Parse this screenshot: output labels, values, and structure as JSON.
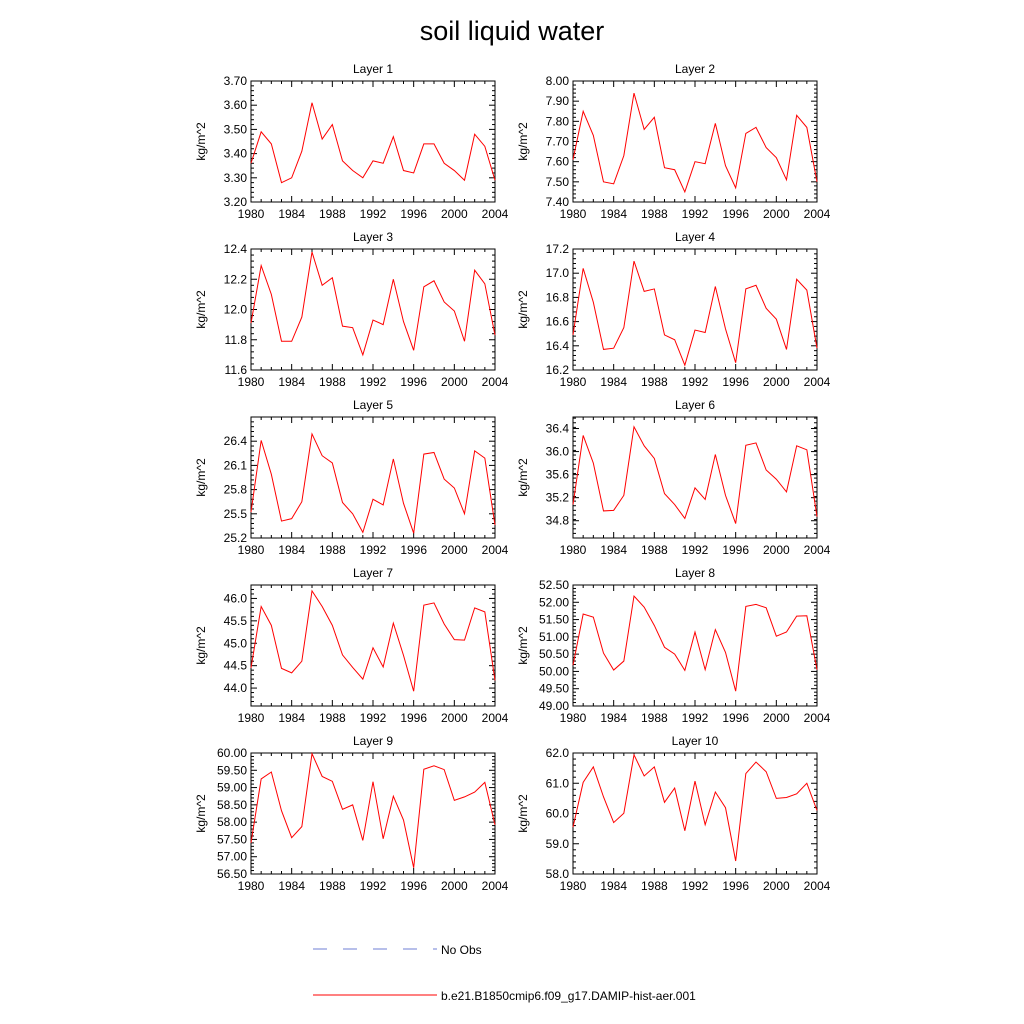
{
  "figure": {
    "title": "soil liquid water"
  },
  "legend": {
    "entries": [
      {
        "label": "No Obs",
        "color": "#6f7fd6",
        "dash": "dashed"
      },
      {
        "label": "b.e21.B1850cmip6.f09_g17.DAMIP-hist-aer.001",
        "color": "#ff0000",
        "dash": "solid"
      }
    ]
  },
  "colors": {
    "series": "#ff0000",
    "obs": "#6f7fd6",
    "axis": "#000000"
  },
  "chart_data": [
    {
      "type": "line",
      "title": "Layer 1",
      "ylabel": "kg/m^2",
      "xlim": [
        1980,
        2004
      ],
      "ylim": [
        3.2,
        3.7
      ],
      "xticks": [
        1980,
        1984,
        1988,
        1992,
        1996,
        2000,
        2004
      ],
      "xtick_labels": [
        "1980",
        "1984",
        "1988",
        "1992",
        "1996",
        "2000",
        "2004"
      ],
      "yticks": [
        3.2,
        3.3,
        3.4,
        3.5,
        3.6,
        3.7
      ],
      "ytick_labels": [
        "3.20",
        "3.30",
        "3.40",
        "3.50",
        "3.60",
        "3.70"
      ],
      "x": [
        1980,
        1981,
        1982,
        1983,
        1984,
        1985,
        1986,
        1987,
        1988,
        1989,
        1990,
        1991,
        1992,
        1993,
        1994,
        1995,
        1996,
        1997,
        1998,
        1999,
        2000,
        2001,
        2002,
        2003,
        2004
      ],
      "series": [
        {
          "name": "b.e21.B1850cmip6.f09_g17.DAMIP-hist-aer.001",
          "values": [
            3.36,
            3.49,
            3.44,
            3.28,
            3.3,
            3.41,
            3.61,
            3.46,
            3.52,
            3.37,
            3.33,
            3.3,
            3.37,
            3.36,
            3.47,
            3.33,
            3.32,
            3.44,
            3.44,
            3.36,
            3.33,
            3.29,
            3.48,
            3.43,
            3.29
          ]
        }
      ]
    },
    {
      "type": "line",
      "title": "Layer 2",
      "ylabel": "kg/m^2",
      "xlim": [
        1980,
        2004
      ],
      "ylim": [
        7.4,
        8.0
      ],
      "xticks": [
        1980,
        1984,
        1988,
        1992,
        1996,
        2000,
        2004
      ],
      "xtick_labels": [
        "1980",
        "1984",
        "1988",
        "1992",
        "1996",
        "2000",
        "2004"
      ],
      "yticks": [
        7.4,
        7.5,
        7.6,
        7.7,
        7.8,
        7.9,
        8.0
      ],
      "ytick_labels": [
        "7.40",
        "7.50",
        "7.60",
        "7.70",
        "7.80",
        "7.90",
        "8.00"
      ],
      "x": [
        1980,
        1981,
        1982,
        1983,
        1984,
        1985,
        1986,
        1987,
        1988,
        1989,
        1990,
        1991,
        1992,
        1993,
        1994,
        1995,
        1996,
        1997,
        1998,
        1999,
        2000,
        2001,
        2002,
        2003,
        2004
      ],
      "series": [
        {
          "name": "b.e21.B1850cmip6.f09_g17.DAMIP-hist-aer.001",
          "values": [
            7.61,
            7.85,
            7.73,
            7.5,
            7.49,
            7.63,
            7.94,
            7.76,
            7.82,
            7.57,
            7.56,
            7.45,
            7.6,
            7.59,
            7.79,
            7.58,
            7.47,
            7.74,
            7.77,
            7.67,
            7.62,
            7.51,
            7.83,
            7.77,
            7.5
          ]
        }
      ]
    },
    {
      "type": "line",
      "title": "Layer 3",
      "ylabel": "kg/m^2",
      "xlim": [
        1980,
        2004
      ],
      "ylim": [
        11.6,
        12.4
      ],
      "xticks": [
        1980,
        1984,
        1988,
        1992,
        1996,
        2000,
        2004
      ],
      "xtick_labels": [
        "1980",
        "1984",
        "1988",
        "1992",
        "1996",
        "2000",
        "2004"
      ],
      "yticks": [
        11.6,
        11.8,
        12.0,
        12.2,
        12.4
      ],
      "ytick_labels": [
        "11.6",
        "11.8",
        "12.0",
        "12.2",
        "12.4"
      ],
      "x": [
        1980,
        1981,
        1982,
        1983,
        1984,
        1985,
        1986,
        1987,
        1988,
        1989,
        1990,
        1991,
        1992,
        1993,
        1994,
        1995,
        1996,
        1997,
        1998,
        1999,
        2000,
        2001,
        2002,
        2003,
        2004
      ],
      "series": [
        {
          "name": "b.e21.B1850cmip6.f09_g17.DAMIP-hist-aer.001",
          "values": [
            11.91,
            12.29,
            12.1,
            11.79,
            11.79,
            11.95,
            12.38,
            12.16,
            12.21,
            11.89,
            11.88,
            11.7,
            11.93,
            11.9,
            12.2,
            11.92,
            11.73,
            12.15,
            12.19,
            12.05,
            11.99,
            11.79,
            12.26,
            12.17,
            11.83
          ]
        }
      ]
    },
    {
      "type": "line",
      "title": "Layer 4",
      "ylabel": "kg/m^2",
      "xlim": [
        1980,
        2004
      ],
      "ylim": [
        16.2,
        17.2
      ],
      "xticks": [
        1980,
        1984,
        1988,
        1992,
        1996,
        2000,
        2004
      ],
      "xtick_labels": [
        "1980",
        "1984",
        "1988",
        "1992",
        "1996",
        "2000",
        "2004"
      ],
      "yticks": [
        16.2,
        16.4,
        16.6,
        16.8,
        17.0,
        17.2
      ],
      "ytick_labels": [
        "16.2",
        "16.4",
        "16.6",
        "16.8",
        "17.0",
        "17.2"
      ],
      "x": [
        1980,
        1981,
        1982,
        1983,
        1984,
        1985,
        1986,
        1987,
        1988,
        1989,
        1990,
        1991,
        1992,
        1993,
        1994,
        1995,
        1996,
        1997,
        1998,
        1999,
        2000,
        2001,
        2002,
        2003,
        2004
      ],
      "series": [
        {
          "name": "b.e21.B1850cmip6.f09_g17.DAMIP-hist-aer.001",
          "values": [
            16.49,
            17.04,
            16.76,
            16.37,
            16.38,
            16.55,
            17.1,
            16.85,
            16.87,
            16.49,
            16.45,
            16.24,
            16.53,
            16.51,
            16.89,
            16.54,
            16.26,
            16.87,
            16.9,
            16.71,
            16.62,
            16.37,
            16.95,
            16.86,
            16.38
          ]
        }
      ]
    },
    {
      "type": "line",
      "title": "Layer 5",
      "ylabel": "kg/m^2",
      "xlim": [
        1980,
        2004
      ],
      "ylim": [
        25.2,
        26.7
      ],
      "xticks": [
        1980,
        1984,
        1988,
        1992,
        1996,
        2000,
        2004
      ],
      "xtick_labels": [
        "1980",
        "1984",
        "1988",
        "1992",
        "1996",
        "2000",
        "2004"
      ],
      "yticks": [
        25.2,
        25.5,
        25.8,
        26.1,
        26.4
      ],
      "ytick_labels": [
        "25.2",
        "25.5",
        "25.8",
        "26.1",
        "26.4"
      ],
      "x": [
        1980,
        1981,
        1982,
        1983,
        1984,
        1985,
        1986,
        1987,
        1988,
        1989,
        1990,
        1991,
        1992,
        1993,
        1994,
        1995,
        1996,
        1997,
        1998,
        1999,
        2000,
        2001,
        2002,
        2003,
        2004
      ],
      "series": [
        {
          "name": "b.e21.B1850cmip6.f09_g17.DAMIP-hist-aer.001",
          "values": [
            25.52,
            26.41,
            25.99,
            25.41,
            25.44,
            25.65,
            26.49,
            26.22,
            26.13,
            25.64,
            25.5,
            25.27,
            25.68,
            25.61,
            26.18,
            25.63,
            25.26,
            26.24,
            26.26,
            25.93,
            25.82,
            25.5,
            26.28,
            26.19,
            25.36
          ]
        }
      ]
    },
    {
      "type": "line",
      "title": "Layer 6",
      "ylabel": "kg/m^2",
      "xlim": [
        1980,
        2004
      ],
      "ylim": [
        34.5,
        36.6
      ],
      "xticks": [
        1980,
        1984,
        1988,
        1992,
        1996,
        2000,
        2004
      ],
      "xtick_labels": [
        "1980",
        "1984",
        "1988",
        "1992",
        "1996",
        "2000",
        "2004"
      ],
      "yticks": [
        34.8,
        35.2,
        35.6,
        36.0,
        36.4
      ],
      "ytick_labels": [
        "34.8",
        "35.2",
        "35.6",
        "36.0",
        "36.4"
      ],
      "x": [
        1980,
        1981,
        1982,
        1983,
        1984,
        1985,
        1986,
        1987,
        1988,
        1989,
        1990,
        1991,
        1992,
        1993,
        1994,
        1995,
        1996,
        1997,
        1998,
        1999,
        2000,
        2001,
        2002,
        2003,
        2004
      ],
      "series": [
        {
          "name": "b.e21.B1850cmip6.f09_g17.DAMIP-hist-aer.001",
          "values": [
            35.08,
            36.28,
            35.8,
            34.97,
            34.98,
            35.24,
            36.43,
            36.1,
            35.88,
            35.27,
            35.08,
            34.84,
            35.37,
            35.17,
            35.95,
            35.24,
            34.75,
            36.11,
            36.15,
            35.68,
            35.52,
            35.3,
            36.1,
            36.03,
            34.87
          ]
        }
      ]
    },
    {
      "type": "line",
      "title": "Layer 7",
      "ylabel": "kg/m^2",
      "xlim": [
        1980,
        2004
      ],
      "ylim": [
        43.6,
        46.3
      ],
      "xticks": [
        1980,
        1984,
        1988,
        1992,
        1996,
        2000,
        2004
      ],
      "xtick_labels": [
        "1980",
        "1984",
        "1988",
        "1992",
        "1996",
        "2000",
        "2004"
      ],
      "yticks": [
        44.0,
        44.5,
        45.0,
        45.5,
        46.0
      ],
      "ytick_labels": [
        "44.0",
        "44.5",
        "45.0",
        "45.5",
        "46.0"
      ],
      "x": [
        1980,
        1981,
        1982,
        1983,
        1984,
        1985,
        1986,
        1987,
        1988,
        1989,
        1990,
        1991,
        1992,
        1993,
        1994,
        1995,
        1996,
        1997,
        1998,
        1999,
        2000,
        2001,
        2002,
        2003,
        2004
      ],
      "series": [
        {
          "name": "b.e21.B1850cmip6.f09_g17.DAMIP-hist-aer.001",
          "values": [
            44.45,
            45.82,
            45.4,
            44.44,
            44.34,
            44.6,
            46.17,
            45.82,
            45.4,
            44.74,
            44.46,
            44.2,
            44.9,
            44.47,
            45.45,
            44.73,
            43.93,
            45.85,
            45.9,
            45.43,
            45.08,
            45.07,
            45.79,
            45.7,
            44.17
          ]
        }
      ]
    },
    {
      "type": "line",
      "title": "Layer 8",
      "ylabel": "kg/m^2",
      "xlim": [
        1980,
        2004
      ],
      "ylim": [
        49.0,
        52.5
      ],
      "xticks": [
        1980,
        1984,
        1988,
        1992,
        1996,
        2000,
        2004
      ],
      "xtick_labels": [
        "1980",
        "1984",
        "1988",
        "1992",
        "1996",
        "2000",
        "2004"
      ],
      "yticks": [
        49.0,
        49.5,
        50.0,
        50.5,
        51.0,
        51.5,
        52.0,
        52.5
      ],
      "ytick_labels": [
        "49.00",
        "49.50",
        "50.00",
        "50.50",
        "51.00",
        "51.50",
        "52.00",
        "52.50"
      ],
      "x": [
        1980,
        1981,
        1982,
        1983,
        1984,
        1985,
        1986,
        1987,
        1988,
        1989,
        1990,
        1991,
        1992,
        1993,
        1994,
        1995,
        1996,
        1997,
        1998,
        1999,
        2000,
        2001,
        2002,
        2003,
        2004
      ],
      "series": [
        {
          "name": "b.e21.B1850cmip6.f09_g17.DAMIP-hist-aer.001",
          "values": [
            50.18,
            51.66,
            51.57,
            50.53,
            50.04,
            50.3,
            52.18,
            51.86,
            51.33,
            50.7,
            50.5,
            50.03,
            51.14,
            50.05,
            51.21,
            50.55,
            49.43,
            51.88,
            51.94,
            51.84,
            51.02,
            51.14,
            51.6,
            51.61,
            50.05
          ]
        }
      ]
    },
    {
      "type": "line",
      "title": "Layer 9",
      "ylabel": "kg/m^2",
      "xlim": [
        1980,
        2004
      ],
      "ylim": [
        56.5,
        60.0
      ],
      "xticks": [
        1980,
        1984,
        1988,
        1992,
        1996,
        2000,
        2004
      ],
      "xtick_labels": [
        "1980",
        "1984",
        "1988",
        "1992",
        "1996",
        "2000",
        "2004"
      ],
      "yticks": [
        56.5,
        57.0,
        57.5,
        58.0,
        58.5,
        59.0,
        59.5,
        60.0
      ],
      "ytick_labels": [
        "56.50",
        "57.00",
        "57.50",
        "58.00",
        "58.50",
        "59.00",
        "59.50",
        "60.00"
      ],
      "x": [
        1980,
        1981,
        1982,
        1983,
        1984,
        1985,
        1986,
        1987,
        1988,
        1989,
        1990,
        1991,
        1992,
        1993,
        1994,
        1995,
        1996,
        1997,
        1998,
        1999,
        2000,
        2001,
        2002,
        2003,
        2004
      ],
      "series": [
        {
          "name": "b.e21.B1850cmip6.f09_g17.DAMIP-hist-aer.001",
          "values": [
            57.4,
            59.25,
            59.45,
            58.33,
            57.55,
            57.87,
            59.98,
            59.32,
            59.18,
            58.37,
            58.5,
            57.47,
            59.17,
            57.52,
            58.75,
            58.06,
            56.68,
            59.53,
            59.63,
            59.52,
            58.63,
            58.73,
            58.87,
            59.15,
            57.92
          ]
        }
      ]
    },
    {
      "type": "line",
      "title": "Layer 10",
      "ylabel": "kg/m^2",
      "xlim": [
        1980,
        2004
      ],
      "ylim": [
        58.0,
        62.0
      ],
      "xticks": [
        1980,
        1984,
        1988,
        1992,
        1996,
        2000,
        2004
      ],
      "xtick_labels": [
        "1980",
        "1984",
        "1988",
        "1992",
        "1996",
        "2000",
        "2004"
      ],
      "yticks": [
        58.0,
        59.0,
        60.0,
        61.0,
        62.0
      ],
      "ytick_labels": [
        "58.0",
        "59.0",
        "60.0",
        "61.0",
        "62.0"
      ],
      "x": [
        1980,
        1981,
        1982,
        1983,
        1984,
        1985,
        1986,
        1987,
        1988,
        1989,
        1990,
        1991,
        1992,
        1993,
        1994,
        1995,
        1996,
        1997,
        1998,
        1999,
        2000,
        2001,
        2002,
        2003,
        2004
      ],
      "series": [
        {
          "name": "b.e21.B1850cmip6.f09_g17.DAMIP-hist-aer.001",
          "values": [
            59.55,
            61.03,
            61.54,
            60.55,
            59.7,
            60.01,
            61.94,
            61.24,
            61.54,
            60.37,
            60.84,
            59.43,
            61.07,
            59.63,
            60.71,
            60.19,
            58.43,
            61.32,
            61.7,
            61.38,
            60.5,
            60.53,
            60.65,
            61.0,
            60.1
          ]
        }
      ]
    }
  ]
}
